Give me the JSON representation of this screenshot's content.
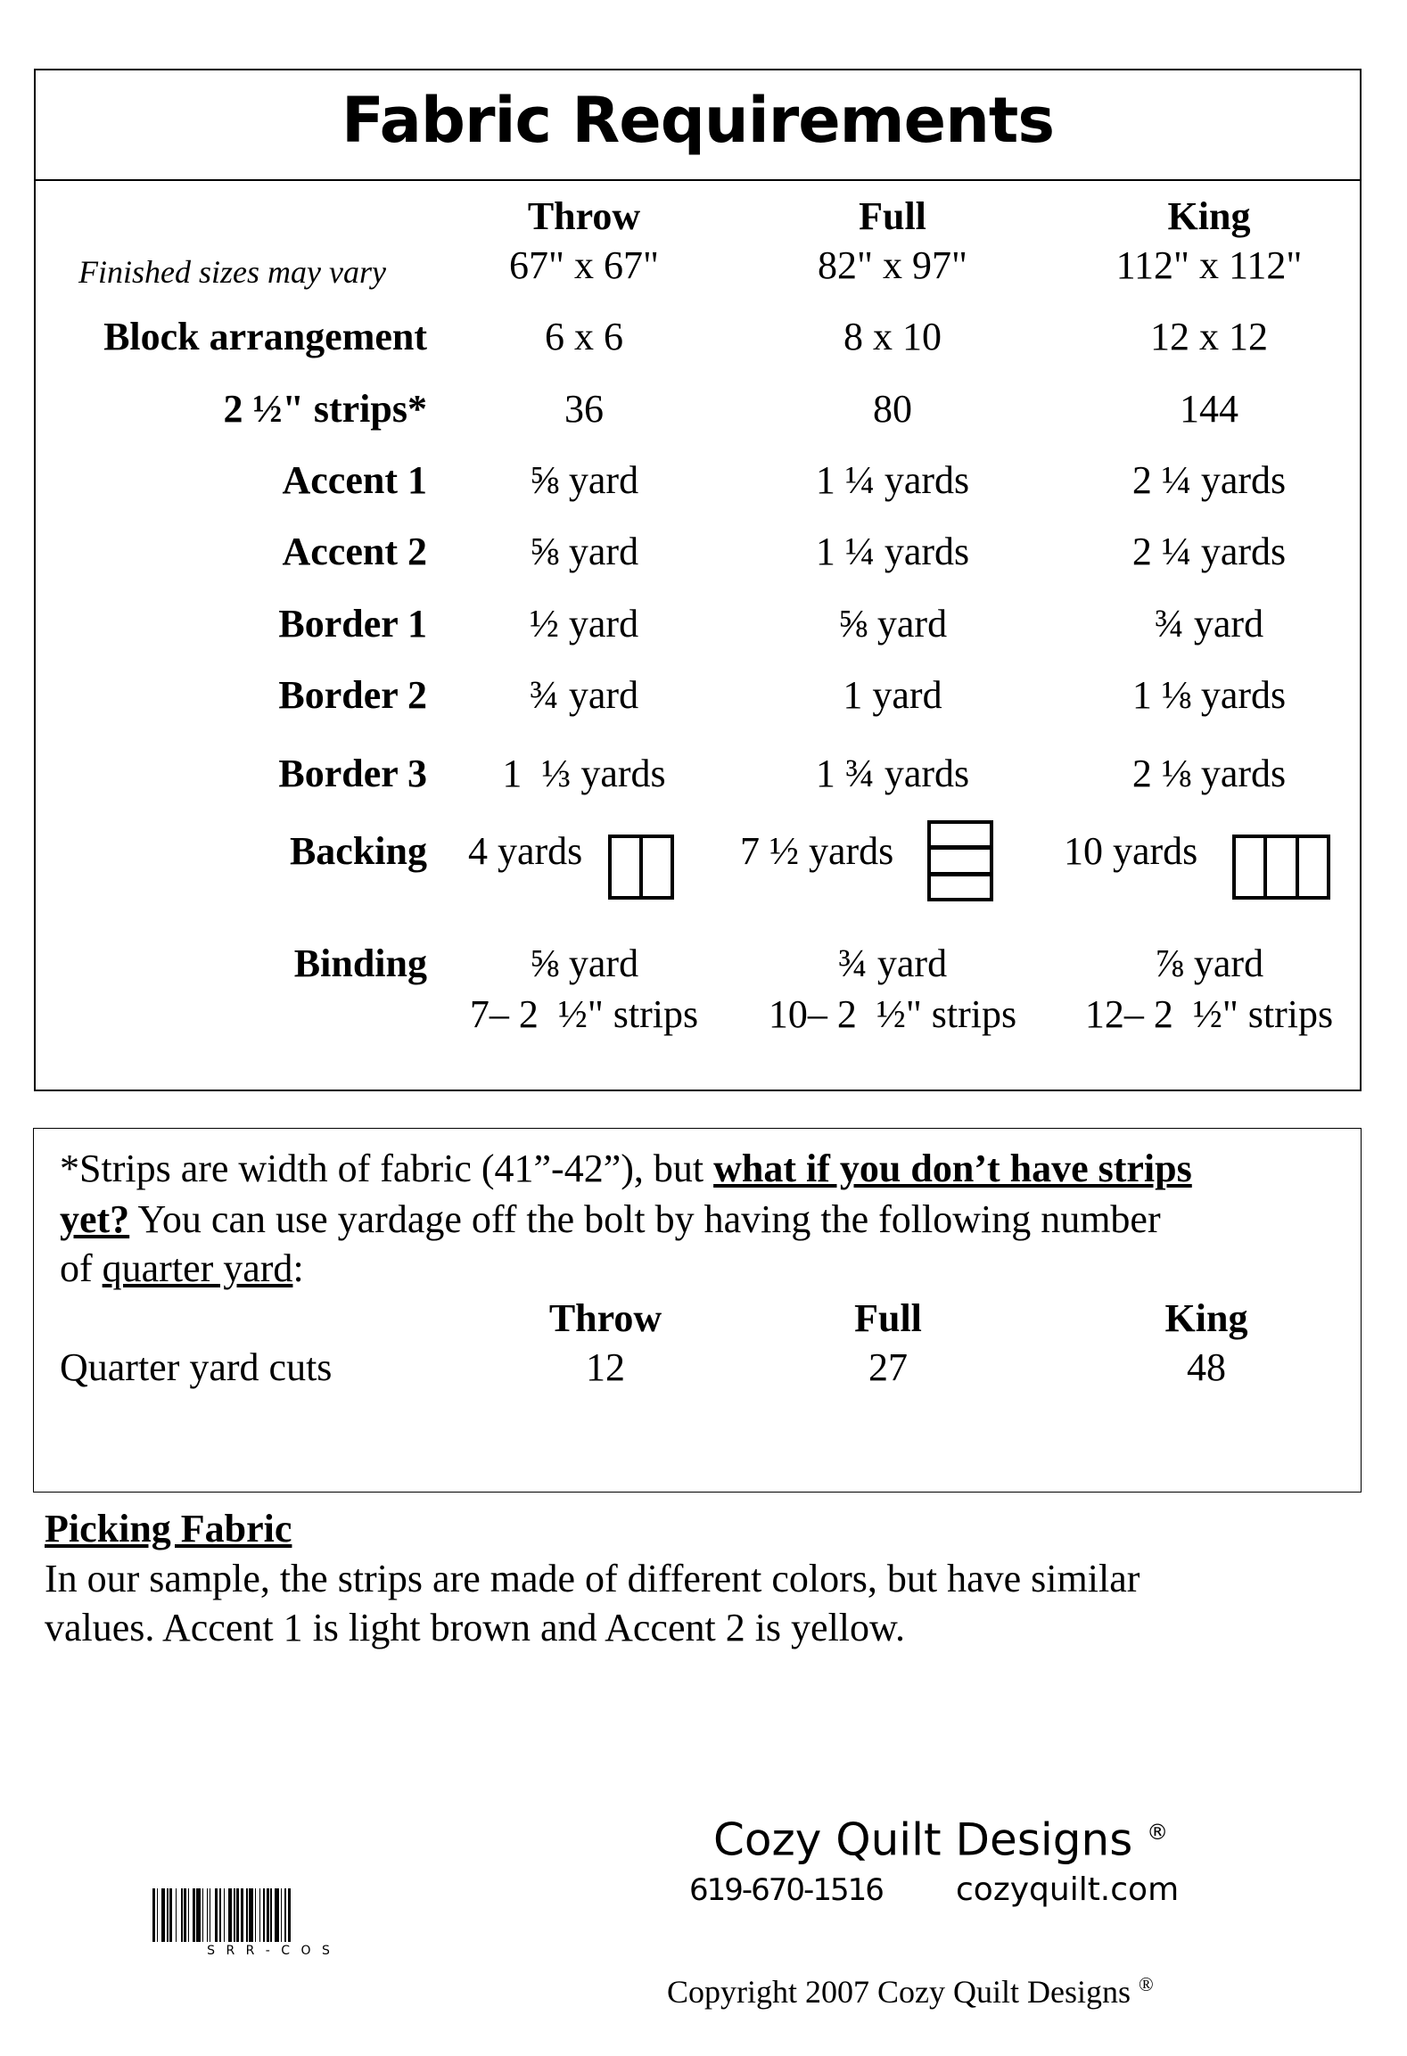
{
  "fabric_requirements": {
    "title": "Fabric Requirements",
    "note": "Finished sizes may vary",
    "columns": [
      {
        "name": "Throw",
        "size": "67\" x 67\""
      },
      {
        "name": "Full",
        "size": "82\" x 97\""
      },
      {
        "name": "King",
        "size": "112\" x 112\""
      }
    ],
    "rows": [
      {
        "label": "Block arrangement",
        "values": [
          "6 x 6",
          "8 x 10",
          "12 x 12"
        ]
      },
      {
        "label": "2 ½\" strips*",
        "values": [
          "36",
          "80",
          "144"
        ]
      },
      {
        "label": "Accent 1",
        "values": [
          "⅝ yard",
          "1 ¼ yards",
          "2 ¼ yards"
        ]
      },
      {
        "label": "Accent 2",
        "values": [
          "⅝ yard",
          "1 ¼ yards",
          "2 ¼ yards"
        ]
      },
      {
        "label": "Border 1",
        "values": [
          "½ yard",
          "⅝ yard",
          "¾ yard"
        ]
      },
      {
        "label": "Border 2",
        "values": [
          "¾ yard",
          "1 yard",
          "1 ⅛ yards"
        ]
      },
      {
        "label": "Border 3",
        "values": [
          "1  ⅓ yards",
          "1 ¾ yards",
          "2 ⅛ yards"
        ]
      }
    ],
    "backing": {
      "label": "Backing",
      "values": [
        "4 yards",
        "7 ½ yards",
        "10 yards"
      ],
      "icons": [
        "2-vertical-panels-icon",
        "3-horizontal-panels-icon",
        "3-vertical-panels-icon"
      ]
    },
    "binding": {
      "label": "Binding",
      "yardage": [
        "⅝ yard",
        "¾ yard",
        "⅞ yard"
      ],
      "strips": [
        "7– 2  ½\" strips",
        "10– 2  ½\" strips",
        "12– 2  ½\" strips"
      ]
    }
  },
  "strips_note": {
    "line1_a": "*Strips are width of fabric (41”-42”), but ",
    "line1_b": "what if you don’t have strips",
    "line2_a": "yet?",
    "line2_b": " You can use yardage off the bolt by having the following number",
    "line3_a": "of ",
    "line3_b": "quarter yard",
    "line3_c": ":",
    "columns": [
      "Throw",
      "Full",
      "King"
    ],
    "row_label": "Quarter yard cuts",
    "values": [
      "12",
      "27",
      "48"
    ]
  },
  "picking": {
    "heading": "Picking Fabric",
    "line1": "In our sample, the strips are made of different colors, but have similar",
    "line2": "values. Accent 1 is light brown and Accent 2 is yellow."
  },
  "footer": {
    "company": "Cozy Quilt Designs",
    "registered": "®",
    "phone": "619-670-1516",
    "website": "cozyquilt.com",
    "copyright": "Copyright 2007 Cozy Quilt Designs",
    "barcode_text": "S R R - C O S"
  }
}
